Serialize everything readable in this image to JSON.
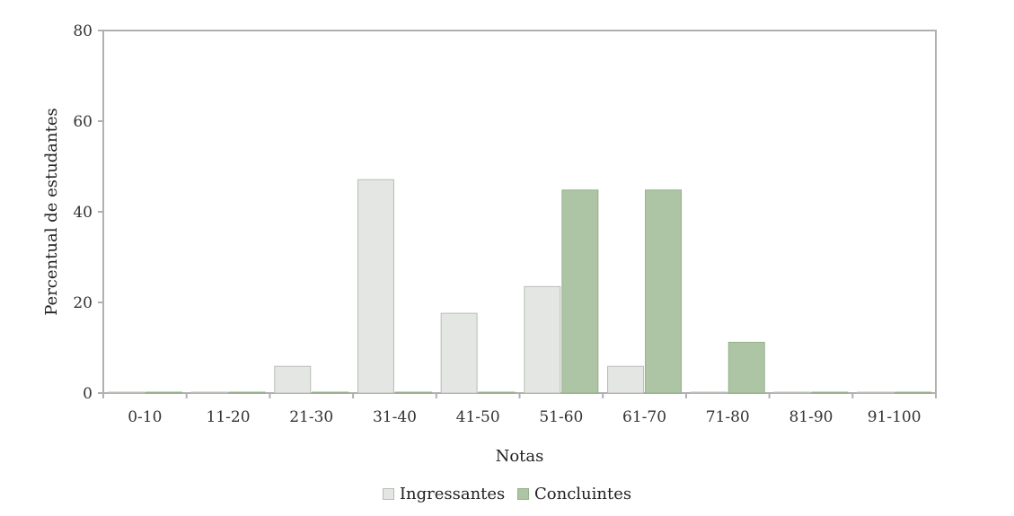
{
  "chart_data": {
    "type": "bar",
    "categories": [
      "0-10",
      "11-20",
      "21-30",
      "31-40",
      "41-50",
      "51-60",
      "61-70",
      "71-80",
      "81-90",
      "91-100"
    ],
    "series": [
      {
        "name": "Ingressantes",
        "values": [
          0,
          0,
          5.9,
          47.1,
          17.6,
          23.5,
          5.9,
          0,
          0,
          0
        ],
        "color": "#e3e6e2",
        "stroke": "#b8bdb6"
      },
      {
        "name": "Concluintes",
        "values": [
          0,
          0,
          0,
          0,
          0,
          44.8,
          44.8,
          11.2,
          0,
          0
        ],
        "color": "#adc5a4",
        "stroke": "#95b08b"
      }
    ],
    "xlabel": "Notas",
    "ylabel": "Percentual de estudantes",
    "ylim": [
      0,
      80
    ],
    "yticks": [
      0,
      20,
      40,
      60,
      80
    ],
    "grid": false,
    "legend_position": "bottom"
  }
}
